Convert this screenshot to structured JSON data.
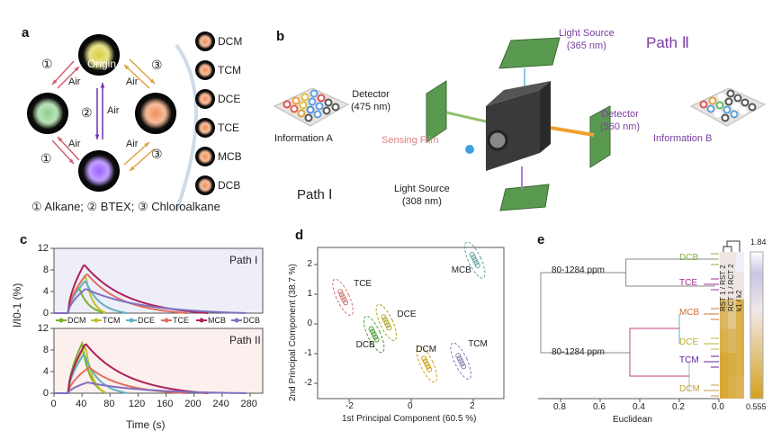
{
  "panel_labels": [
    "a",
    "b",
    "c",
    "d",
    "e"
  ],
  "panel_a": {
    "origin_label": "Origin",
    "air_label": "Air",
    "markers": [
      "①",
      "②",
      "③"
    ],
    "samples": [
      "DCM",
      "TCM",
      "DCE",
      "TCE",
      "MCB",
      "DCB"
    ],
    "legend": "① Alkane; ② BTEX; ③ Chloroalkane",
    "colors": {
      "origin": "#d8d040",
      "alkane": "#8ccf8a",
      "btex": "#9a60ff",
      "chloro": "#f0905a"
    }
  },
  "panel_b": {
    "light_365": [
      "Light Source",
      "(365 nm)"
    ],
    "light_308": [
      "Light Source",
      "(308 nm)"
    ],
    "detector_475": [
      "Detector",
      "(475 nm)"
    ],
    "detector_560": [
      "Detector",
      "(560 nm)"
    ],
    "sensing_film": "Sensing Film",
    "info_a": "Information A",
    "info_b": "Information B",
    "path_1": "Path Ⅰ",
    "path_2": "Path Ⅱ"
  },
  "chart_data": [
    {
      "type": "line",
      "panel": "c",
      "xlabel": "Time (s)",
      "ylabel": "I/I0-1 (%)",
      "xlim": [
        0,
        280
      ],
      "ylim": [
        0,
        12
      ],
      "xticks": [
        "0",
        "40",
        "80",
        "120",
        "160",
        "200",
        "240",
        "280"
      ],
      "yticks": [
        "0",
        "4",
        "8",
        "12"
      ],
      "legend": [
        "DCM",
        "TCM",
        "DCE",
        "TCE",
        "MCB",
        "DCB"
      ],
      "colors": [
        "#7ab030",
        "#c8c020",
        "#60b0c0",
        "#e07060",
        "#b0205a",
        "#8070c0"
      ],
      "subplots": [
        {
          "title": "Path I",
          "series": [
            {
              "name": "DCM",
              "peak_time": 35,
              "peak": 5.0,
              "end_time": 75
            },
            {
              "name": "TCM",
              "peak_time": 45,
              "peak": 7.0,
              "end_time": 75
            },
            {
              "name": "DCE",
              "peak_time": 45,
              "peak": 6.0,
              "end_time": 105
            },
            {
              "name": "TCE",
              "peak_time": 47,
              "peak": 7.3,
              "end_time": 190
            },
            {
              "name": "MCB",
              "peak_time": 43,
              "peak": 9.0,
              "end_time": 220
            },
            {
              "name": "DCB",
              "peak_time": 45,
              "peak": 4.5,
              "end_time": 275
            }
          ]
        },
        {
          "title": "Path II",
          "series": [
            {
              "name": "DCM",
              "peak_time": 40,
              "peak": 9.2,
              "end_time": 75
            },
            {
              "name": "TCM",
              "peak_time": 45,
              "peak": 8.8,
              "end_time": 75
            },
            {
              "name": "DCE",
              "peak_time": 43,
              "peak": 7.3,
              "end_time": 105
            },
            {
              "name": "TCE",
              "peak_time": 50,
              "peak": 4.8,
              "end_time": 190
            },
            {
              "name": "MCB",
              "peak_time": 45,
              "peak": 9.2,
              "end_time": 220
            },
            {
              "name": "DCB",
              "peak_time": 48,
              "peak": 2.0,
              "end_time": 275
            }
          ]
        }
      ],
      "onset_time": 20
    },
    {
      "type": "scatter",
      "panel": "d",
      "xlabel": "1st Principal Component (60.5 %)",
      "ylabel": "2nd Principal Component (38.7 %)",
      "xticks": [
        "-2",
        "0",
        "2"
      ],
      "yticks": [
        "-2",
        "-1",
        "0",
        "1",
        "2"
      ],
      "clusters": [
        {
          "name": "TCE",
          "x": -2.2,
          "y": 0.9,
          "color": "#d07070"
        },
        {
          "name": "DCE",
          "x": -0.8,
          "y": 0.05,
          "color": "#b0a020"
        },
        {
          "name": "DCB",
          "x": -1.2,
          "y": -0.35,
          "color": "#4a9a30"
        },
        {
          "name": "DCM",
          "x": 0.5,
          "y": -1.35,
          "color": "#d0a010"
        },
        {
          "name": "TCM",
          "x": 1.6,
          "y": -1.25,
          "color": "#8080b0"
        },
        {
          "name": "MCB",
          "x": 2.05,
          "y": 2.15,
          "color": "#60a0a0"
        }
      ]
    },
    {
      "type": "heatmap",
      "panel": "e",
      "xlabel": "Euclidean",
      "xticks": [
        "0.8",
        "0.6",
        "0.4",
        "0.2",
        "0.0"
      ],
      "leaves": [
        {
          "name": "DCB",
          "color": "#80b040"
        },
        {
          "name": "TCE",
          "color": "#a03090"
        },
        {
          "name": "MCB",
          "color": "#d07030"
        },
        {
          "name": "DCE",
          "color": "#c0b030"
        },
        {
          "name": "TCM",
          "color": "#6020a0"
        },
        {
          "name": "DCM",
          "color": "#c0a040"
        }
      ],
      "cluster_labels": [
        "80-1284 ppm",
        "80-1284 ppm"
      ],
      "columns": [
        "RST 1 / RST 2",
        "RCT 1 / RCT 2",
        "k1 / k2"
      ],
      "colorbar": {
        "max": "1.84",
        "min": "0.555",
        "low_color": "#d4a020",
        "high_color": "#c8c4e4"
      }
    }
  ]
}
